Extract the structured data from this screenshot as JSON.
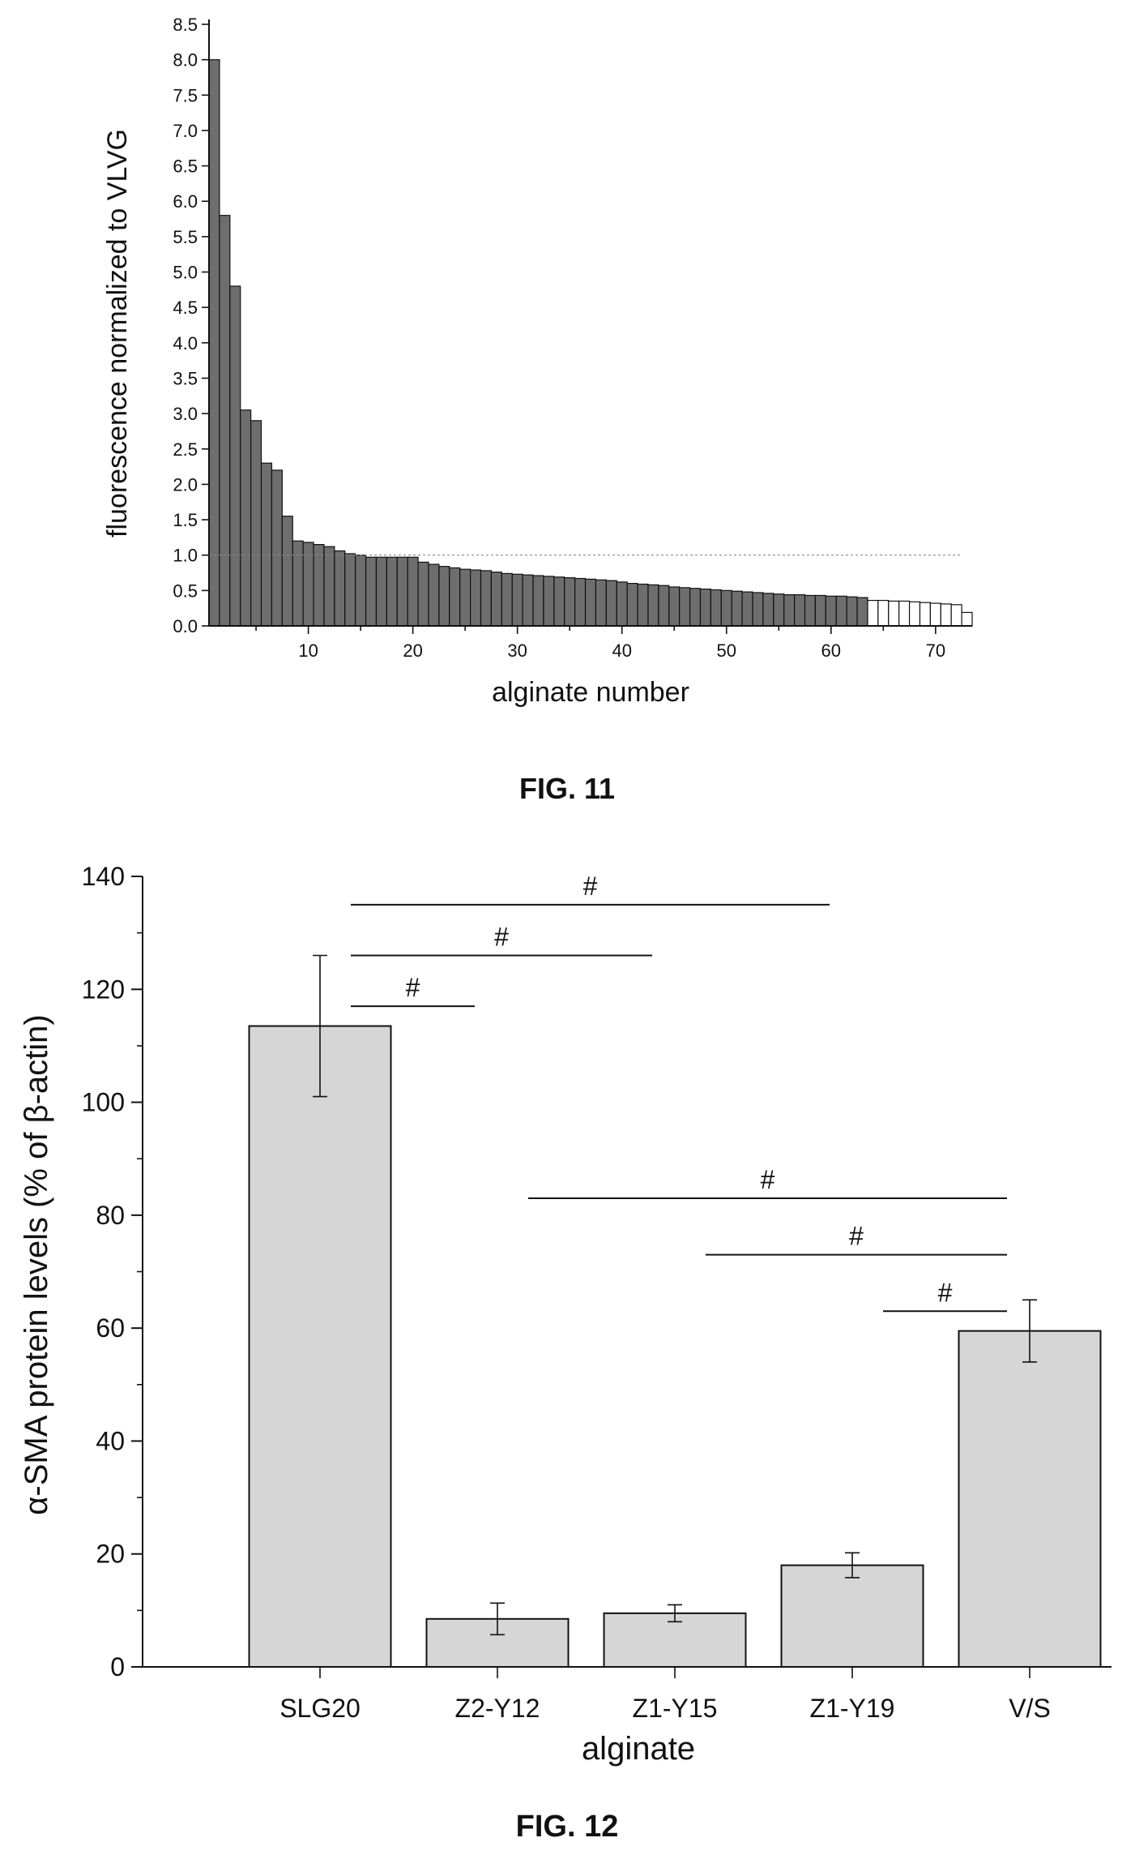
{
  "figures": {
    "fig11_caption": "FIG. 11",
    "fig12_caption": "FIG. 12"
  },
  "chart_data": [
    {
      "type": "bar",
      "xlabel": "alginate number",
      "ylabel": "fluorescence normalized to VLVG",
      "ylim": [
        0,
        8.5
      ],
      "xlim": [
        0.5,
        73.5
      ],
      "yticks": [
        "0.0",
        "0.5",
        "1.0",
        "1.5",
        "2.0",
        "2.5",
        "3.0",
        "3.5",
        "4.0",
        "4.5",
        "5.0",
        "5.5",
        "6.0",
        "6.5",
        "7.0",
        "7.5",
        "8.0",
        "8.5"
      ],
      "xticks": [
        "10",
        "20",
        "30",
        "40",
        "50",
        "60",
        "70"
      ],
      "reference_line": 1.0,
      "grid": false,
      "series": [
        {
          "x": [
            1,
            2,
            3,
            4,
            5,
            6,
            7,
            8,
            9,
            10,
            11,
            12,
            13,
            14,
            15,
            16,
            17,
            18,
            19,
            20,
            21,
            22,
            23,
            24,
            25,
            26,
            27,
            28,
            29,
            30,
            31,
            32,
            33,
            34,
            35,
            36,
            37,
            38,
            39,
            40,
            41,
            42,
            43,
            44,
            45,
            46,
            47,
            48,
            49,
            50,
            51,
            52,
            53,
            54,
            55,
            56,
            57,
            58,
            59,
            60,
            61,
            62,
            63,
            64,
            65,
            66,
            67,
            68,
            69,
            70,
            71,
            72,
            73
          ],
          "values": [
            8.0,
            5.8,
            4.8,
            3.05,
            2.9,
            2.3,
            2.2,
            1.55,
            1.2,
            1.18,
            1.15,
            1.12,
            1.06,
            1.02,
            1.0,
            0.97,
            0.97,
            0.97,
            0.97,
            0.97,
            0.9,
            0.87,
            0.84,
            0.82,
            0.8,
            0.79,
            0.78,
            0.76,
            0.74,
            0.73,
            0.72,
            0.71,
            0.7,
            0.69,
            0.68,
            0.67,
            0.66,
            0.65,
            0.64,
            0.62,
            0.6,
            0.59,
            0.58,
            0.57,
            0.55,
            0.54,
            0.53,
            0.52,
            0.51,
            0.5,
            0.49,
            0.48,
            0.47,
            0.46,
            0.45,
            0.44,
            0.44,
            0.43,
            0.43,
            0.42,
            0.42,
            0.41,
            0.4,
            0.36,
            0.36,
            0.35,
            0.35,
            0.34,
            0.33,
            0.32,
            0.31,
            0.3,
            0.19
          ]
        }
      ],
      "bar_fill": "#6e6e6e",
      "bar_fill_light": "#ffffff"
    },
    {
      "type": "bar",
      "xlabel": "alginate",
      "ylabel": "α-SMA protein levels (% of β-actin)",
      "ylim": [
        0,
        140
      ],
      "yticks": [
        "0",
        "20",
        "40",
        "60",
        "80",
        "100",
        "120",
        "140"
      ],
      "categories": [
        "SLG20",
        "Z2-Y12",
        "Z1-Y15",
        "Z1-Y19",
        "V/S"
      ],
      "values": [
        113.5,
        8.5,
        9.5,
        18,
        59.5
      ],
      "errors": [
        12.5,
        2.8,
        1.5,
        2.2,
        5.5
      ],
      "bar_fill": "#d6d6d6",
      "annotations": [
        {
          "from": "SLG20",
          "to": "Z1-Y19",
          "y": 135,
          "label": "#"
        },
        {
          "from": "SLG20",
          "to": "Z1-Y15",
          "y": 126,
          "label": "#"
        },
        {
          "from": "SLG20",
          "to": "Z2-Y12",
          "y": 117,
          "label": "#"
        },
        {
          "from": "Z2-Y12",
          "to": "V/S",
          "y": 83,
          "label": "#"
        },
        {
          "from": "Z1-Y15",
          "to": "V/S",
          "y": 73,
          "label": "#"
        },
        {
          "from": "Z1-Y19",
          "to": "V/S",
          "y": 63,
          "label": "#"
        }
      ]
    }
  ]
}
